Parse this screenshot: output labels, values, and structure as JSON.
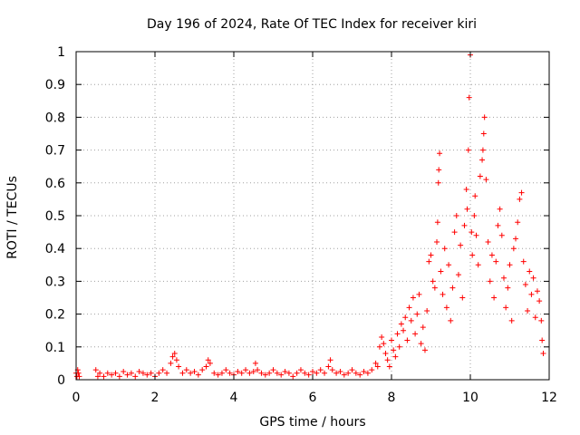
{
  "chart_data": {
    "type": "scatter",
    "title": "Day 196 of 2024, Rate Of TEC Index for receiver kiri",
    "xlabel": "GPS time / hours",
    "ylabel": "ROTI / TECUs",
    "xlim": [
      0,
      12
    ],
    "ylim": [
      0,
      1
    ],
    "xticks": [
      0,
      2,
      4,
      6,
      8,
      10,
      12
    ],
    "yticks": [
      0,
      0.1,
      0.2,
      0.3,
      0.4,
      0.5,
      0.6,
      0.7,
      0.8,
      0.9,
      1
    ],
    "grid": true,
    "marker": "+",
    "series": [
      {
        "name": "ROTI",
        "color": "#ff0000",
        "points": [
          [
            0.0,
            0.02
          ],
          [
            0.02,
            0.01
          ],
          [
            0.04,
            0.03
          ],
          [
            0.06,
            0.02
          ],
          [
            0.08,
            0.01
          ],
          [
            0.5,
            0.03
          ],
          [
            0.55,
            0.01
          ],
          [
            0.6,
            0.02
          ],
          [
            0.7,
            0.01
          ],
          [
            0.8,
            0.02
          ],
          [
            0.9,
            0.015
          ],
          [
            1.0,
            0.02
          ],
          [
            1.1,
            0.01
          ],
          [
            1.2,
            0.025
          ],
          [
            1.3,
            0.015
          ],
          [
            1.4,
            0.02
          ],
          [
            1.5,
            0.01
          ],
          [
            1.6,
            0.025
          ],
          [
            1.7,
            0.02
          ],
          [
            1.8,
            0.015
          ],
          [
            1.9,
            0.02
          ],
          [
            2.0,
            0.01
          ],
          [
            2.1,
            0.02
          ],
          [
            2.2,
            0.03
          ],
          [
            2.3,
            0.02
          ],
          [
            2.4,
            0.05
          ],
          [
            2.45,
            0.07
          ],
          [
            2.5,
            0.08
          ],
          [
            2.55,
            0.06
          ],
          [
            2.6,
            0.04
          ],
          [
            2.7,
            0.02
          ],
          [
            2.8,
            0.03
          ],
          [
            2.9,
            0.02
          ],
          [
            3.0,
            0.025
          ],
          [
            3.1,
            0.015
          ],
          [
            3.2,
            0.03
          ],
          [
            3.3,
            0.04
          ],
          [
            3.35,
            0.06
          ],
          [
            3.4,
            0.05
          ],
          [
            3.5,
            0.02
          ],
          [
            3.6,
            0.015
          ],
          [
            3.7,
            0.02
          ],
          [
            3.8,
            0.03
          ],
          [
            3.9,
            0.02
          ],
          [
            4.0,
            0.015
          ],
          [
            4.1,
            0.025
          ],
          [
            4.2,
            0.02
          ],
          [
            4.3,
            0.03
          ],
          [
            4.4,
            0.02
          ],
          [
            4.5,
            0.025
          ],
          [
            4.55,
            0.05
          ],
          [
            4.6,
            0.03
          ],
          [
            4.7,
            0.02
          ],
          [
            4.8,
            0.015
          ],
          [
            4.9,
            0.02
          ],
          [
            5.0,
            0.03
          ],
          [
            5.1,
            0.02
          ],
          [
            5.2,
            0.015
          ],
          [
            5.3,
            0.025
          ],
          [
            5.4,
            0.02
          ],
          [
            5.5,
            0.01
          ],
          [
            5.6,
            0.02
          ],
          [
            5.7,
            0.03
          ],
          [
            5.8,
            0.02
          ],
          [
            5.9,
            0.015
          ],
          [
            6.0,
            0.025
          ],
          [
            6.1,
            0.02
          ],
          [
            6.2,
            0.03
          ],
          [
            6.3,
            0.02
          ],
          [
            6.4,
            0.04
          ],
          [
            6.45,
            0.06
          ],
          [
            6.5,
            0.03
          ],
          [
            6.6,
            0.02
          ],
          [
            6.7,
            0.025
          ],
          [
            6.8,
            0.015
          ],
          [
            6.9,
            0.02
          ],
          [
            7.0,
            0.03
          ],
          [
            7.1,
            0.02
          ],
          [
            7.2,
            0.015
          ],
          [
            7.3,
            0.025
          ],
          [
            7.4,
            0.02
          ],
          [
            7.5,
            0.03
          ],
          [
            7.6,
            0.05
          ],
          [
            7.65,
            0.04
          ],
          [
            7.7,
            0.1
          ],
          [
            7.75,
            0.13
          ],
          [
            7.8,
            0.11
          ],
          [
            7.85,
            0.08
          ],
          [
            7.9,
            0.06
          ],
          [
            7.95,
            0.04
          ],
          [
            8.0,
            0.12
          ],
          [
            8.05,
            0.09
          ],
          [
            8.1,
            0.07
          ],
          [
            8.15,
            0.14
          ],
          [
            8.2,
            0.1
          ],
          [
            8.25,
            0.17
          ],
          [
            8.3,
            0.15
          ],
          [
            8.35,
            0.19
          ],
          [
            8.4,
            0.12
          ],
          [
            8.45,
            0.22
          ],
          [
            8.5,
            0.18
          ],
          [
            8.55,
            0.25
          ],
          [
            8.6,
            0.14
          ],
          [
            8.65,
            0.2
          ],
          [
            8.7,
            0.26
          ],
          [
            8.75,
            0.11
          ],
          [
            8.8,
            0.16
          ],
          [
            8.85,
            0.09
          ],
          [
            8.9,
            0.21
          ],
          [
            8.95,
            0.36
          ],
          [
            9.0,
            0.38
          ],
          [
            9.05,
            0.3
          ],
          [
            9.1,
            0.28
          ],
          [
            9.15,
            0.42
          ],
          [
            9.17,
            0.48
          ],
          [
            9.19,
            0.6
          ],
          [
            9.2,
            0.64
          ],
          [
            9.22,
            0.69
          ],
          [
            9.25,
            0.33
          ],
          [
            9.3,
            0.26
          ],
          [
            9.35,
            0.4
          ],
          [
            9.4,
            0.22
          ],
          [
            9.45,
            0.35
          ],
          [
            9.5,
            0.18
          ],
          [
            9.55,
            0.28
          ],
          [
            9.6,
            0.45
          ],
          [
            9.65,
            0.5
          ],
          [
            9.7,
            0.32
          ],
          [
            9.75,
            0.41
          ],
          [
            9.8,
            0.25
          ],
          [
            9.85,
            0.47
          ],
          [
            9.9,
            0.58
          ],
          [
            9.92,
            0.52
          ],
          [
            9.95,
            0.7
          ],
          [
            9.97,
            0.86
          ],
          [
            10.0,
            0.99
          ],
          [
            10.03,
            0.45
          ],
          [
            10.05,
            0.38
          ],
          [
            10.1,
            0.5
          ],
          [
            10.12,
            0.56
          ],
          [
            10.15,
            0.44
          ],
          [
            10.2,
            0.35
          ],
          [
            10.25,
            0.62
          ],
          [
            10.3,
            0.67
          ],
          [
            10.32,
            0.7
          ],
          [
            10.34,
            0.75
          ],
          [
            10.36,
            0.8
          ],
          [
            10.4,
            0.61
          ],
          [
            10.45,
            0.42
          ],
          [
            10.5,
            0.3
          ],
          [
            10.55,
            0.38
          ],
          [
            10.6,
            0.25
          ],
          [
            10.65,
            0.36
          ],
          [
            10.7,
            0.47
          ],
          [
            10.75,
            0.52
          ],
          [
            10.8,
            0.44
          ],
          [
            10.85,
            0.31
          ],
          [
            10.9,
            0.22
          ],
          [
            10.95,
            0.28
          ],
          [
            11.0,
            0.35
          ],
          [
            11.05,
            0.18
          ],
          [
            11.1,
            0.4
          ],
          [
            11.15,
            0.43
          ],
          [
            11.2,
            0.48
          ],
          [
            11.25,
            0.55
          ],
          [
            11.3,
            0.57
          ],
          [
            11.35,
            0.36
          ],
          [
            11.4,
            0.29
          ],
          [
            11.45,
            0.21
          ],
          [
            11.5,
            0.33
          ],
          [
            11.55,
            0.26
          ],
          [
            11.6,
            0.31
          ],
          [
            11.65,
            0.19
          ],
          [
            11.7,
            0.27
          ],
          [
            11.75,
            0.24
          ],
          [
            11.8,
            0.18
          ],
          [
            11.82,
            0.12
          ],
          [
            11.85,
            0.08
          ]
        ]
      }
    ]
  }
}
